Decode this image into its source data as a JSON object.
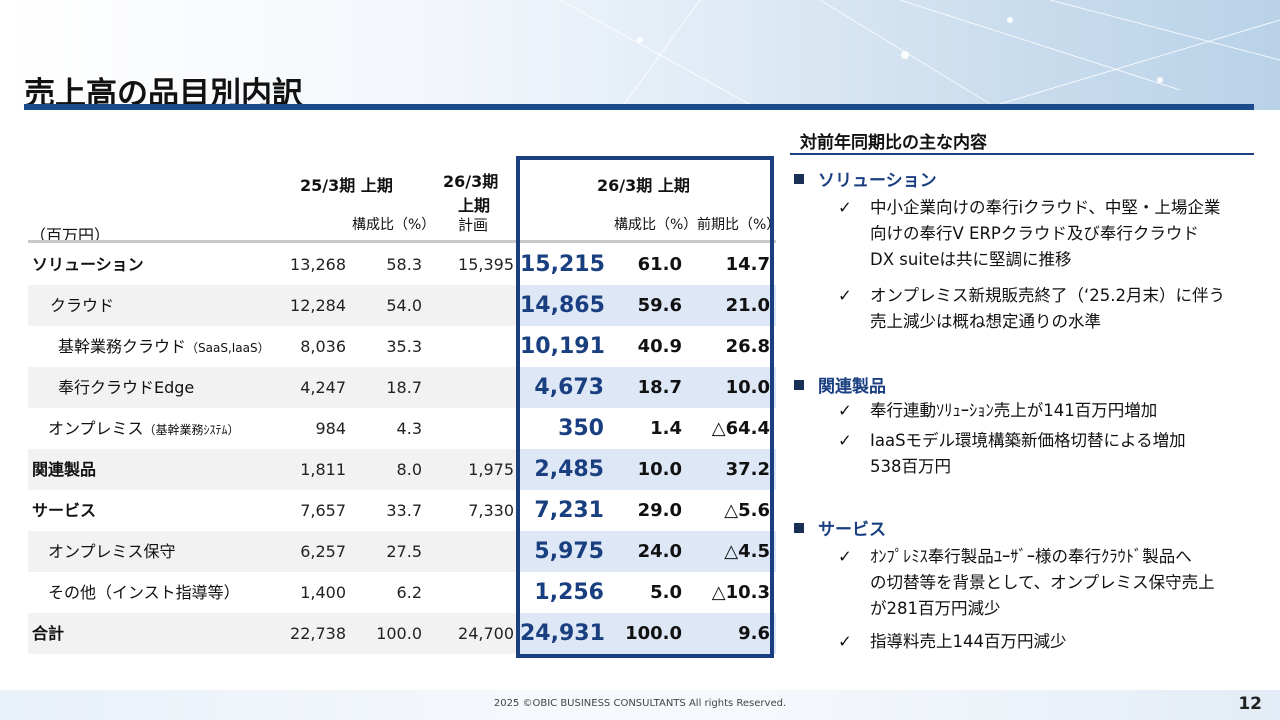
{
  "title": "売上高の品目別内訳",
  "table": {
    "unit": "（百万円）",
    "headers": {
      "prev": "25/3期 上期",
      "prev_ratio": "構成比（%）",
      "plan_l1": "26/3期",
      "plan_l2": "上期",
      "plan_l3": "計画",
      "curr": "26/3期 上期",
      "curr_ratio": "構成比（%）",
      "curr_yoy": "前期比（%）"
    },
    "rows": [
      {
        "label": "ソリューション",
        "sub": "",
        "prev": "13,268",
        "prev_ratio": "58.3",
        "plan": "15,395",
        "curr": "15,215",
        "curr_ratio": "61.0",
        "yoy": "14.7"
      },
      {
        "label": "クラウド",
        "sub": "",
        "prev": "12,284",
        "prev_ratio": "54.0",
        "plan": "",
        "curr": "14,865",
        "curr_ratio": "59.6",
        "yoy": "21.0"
      },
      {
        "label": "基幹業務クラウド",
        "sub": "（SaaS,IaaS）",
        "prev": "8,036",
        "prev_ratio": "35.3",
        "plan": "",
        "curr": "10,191",
        "curr_ratio": "40.9",
        "yoy": "26.8"
      },
      {
        "label": "奉行クラウドEdge",
        "sub": "",
        "prev": "4,247",
        "prev_ratio": "18.7",
        "plan": "",
        "curr": "4,673",
        "curr_ratio": "18.7",
        "yoy": "10.0"
      },
      {
        "label": "オンプレミス",
        "sub": "（基幹業務ｼｽﾃﾑ）",
        "prev": "984",
        "prev_ratio": "4.3",
        "plan": "",
        "curr": "350",
        "curr_ratio": "1.4",
        "yoy": "△64.4"
      },
      {
        "label": "関連製品",
        "sub": "",
        "prev": "1,811",
        "prev_ratio": "8.0",
        "plan": "1,975",
        "curr": "2,485",
        "curr_ratio": "10.0",
        "yoy": "37.2"
      },
      {
        "label": "サービス",
        "sub": "",
        "prev": "7,657",
        "prev_ratio": "33.7",
        "plan": "7,330",
        "curr": "7,231",
        "curr_ratio": "29.0",
        "yoy": "△5.6"
      },
      {
        "label": "オンプレミス保守",
        "sub": "",
        "prev": "6,257",
        "prev_ratio": "27.5",
        "plan": "",
        "curr": "5,975",
        "curr_ratio": "24.0",
        "yoy": "△4.5"
      },
      {
        "label": "その他（インスト指導等）",
        "sub": "",
        "prev": "1,400",
        "prev_ratio": "6.2",
        "plan": "",
        "curr": "1,256",
        "curr_ratio": "5.0",
        "yoy": "△10.3"
      },
      {
        "label": "合計",
        "sub": "",
        "prev": "22,738",
        "prev_ratio": "100.0",
        "plan": "24,700",
        "curr": "24,931",
        "curr_ratio": "100.0",
        "yoy": "9.6"
      }
    ]
  },
  "right_panel": {
    "title": "対前年同期比の主な内容",
    "sections": [
      {
        "heading": "ソリューション",
        "items": [
          [
            "中小企業向けの奉行iクラウド、中堅・上場企業",
            "向けの奉行V ERPクラウド及び奉行クラウド",
            "DX suiteは共に堅調に推移"
          ],
          [
            "オンプレミス新規販売終了（‘25.2月末）に伴う",
            "売上減少は概ね想定通りの水準"
          ]
        ]
      },
      {
        "heading": "関連製品",
        "items": [
          [
            "奉行連動ｿﾘｭｰｼｮﾝ売上が141百万円増加"
          ],
          [
            "IaaSモデル環境構築新価格切替による増加",
            "538百万円"
          ]
        ]
      },
      {
        "heading": "サービス",
        "items": [
          [
            "ｵﾝﾌﾟﾚﾐｽ奉行製品ﾕｰｻﾞｰ様の奉行ｸﾗｳﾄﾞ製品へ",
            "の切替等を背景として、オンプレミス保守売上",
            "が281百万円減少"
          ],
          [
            "指導料売上144百万円減少"
          ]
        ]
      }
    ],
    "check": "✓"
  },
  "footer": {
    "copyright": "2025 ©OBIC BUSINESS CONSULTANTS All rights Reserved.",
    "page": "12"
  }
}
